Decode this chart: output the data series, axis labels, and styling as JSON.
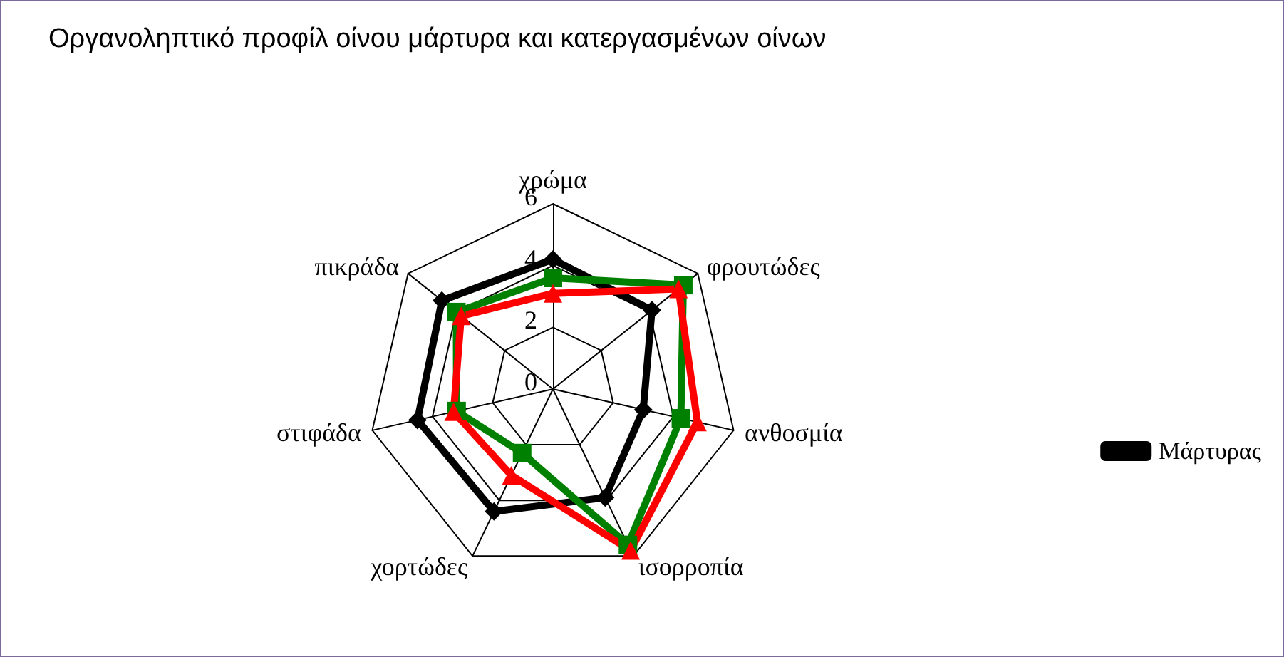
{
  "chart_data": {
    "type": "radar",
    "title": "Οργανοληπτικό προφίλ οίνου μάρτυρα και κατεργασμένων οίνων",
    "categories": [
      "χρώμα",
      "φρουτώδες",
      "ανθοσμία",
      "ισορροπία",
      "χορτώδες",
      "στιφάδα",
      "πικράδα"
    ],
    "ylim": [
      0,
      6
    ],
    "yticks": [
      0,
      2,
      4,
      6
    ],
    "legend": "bottom right",
    "series": [
      {
        "name": "Μάρτυρας",
        "color": "#000000",
        "marker": "diamond",
        "values": [
          4.2,
          4.1,
          3.0,
          3.9,
          4.4,
          4.5,
          4.6
        ]
      },
      {
        "color": "#008000",
        "marker": "square",
        "values": [
          3.6,
          5.4,
          4.25,
          5.6,
          2.3,
          3.2,
          4.0
        ]
      },
      {
        "color": "#ff0000",
        "marker": "triangle",
        "values": [
          3.1,
          5.2,
          4.8,
          5.8,
          3.1,
          3.3,
          3.8
        ]
      }
    ]
  }
}
